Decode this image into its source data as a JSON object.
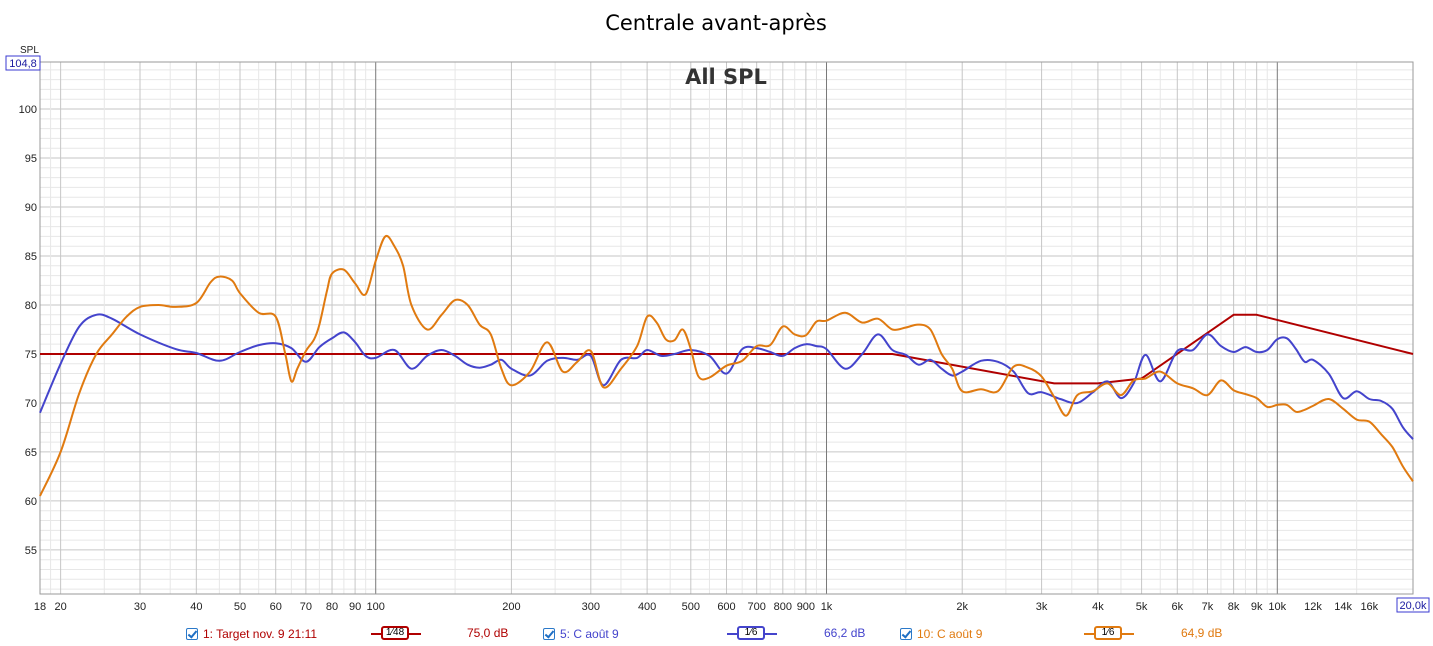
{
  "chart_data": {
    "type": "line",
    "title": "Centrale avant-après",
    "watermark": "All SPL",
    "ylabel": "SPL",
    "ylim": [
      50.5,
      104.8
    ],
    "ylim_top_label": "104,8",
    "xlim": [
      18,
      20000
    ],
    "xlim_right_label": "20,0k",
    "xscale": "log",
    "grid": true,
    "yticks": [
      {
        "v": 55,
        "label": "55"
      },
      {
        "v": 60,
        "label": "60"
      },
      {
        "v": 65,
        "label": "65"
      },
      {
        "v": 70,
        "label": "70"
      },
      {
        "v": 75,
        "label": "75"
      },
      {
        "v": 80,
        "label": "80"
      },
      {
        "v": 85,
        "label": "85"
      },
      {
        "v": 90,
        "label": "90"
      },
      {
        "v": 95,
        "label": "95"
      },
      {
        "v": 100,
        "label": "100"
      }
    ],
    "xticks": [
      {
        "v": 18,
        "label": "18"
      },
      {
        "v": 20,
        "label": "20"
      },
      {
        "v": 30,
        "label": "30"
      },
      {
        "v": 40,
        "label": "40"
      },
      {
        "v": 50,
        "label": "50"
      },
      {
        "v": 60,
        "label": "60"
      },
      {
        "v": 70,
        "label": "70"
      },
      {
        "v": 80,
        "label": "80"
      },
      {
        "v": 90,
        "label": "90"
      },
      {
        "v": 100,
        "label": "100"
      },
      {
        "v": 200,
        "label": "200"
      },
      {
        "v": 300,
        "label": "300"
      },
      {
        "v": 400,
        "label": "400"
      },
      {
        "v": 500,
        "label": "500"
      },
      {
        "v": 600,
        "label": "600"
      },
      {
        "v": 700,
        "label": "700"
      },
      {
        "v": 800,
        "label": "800"
      },
      {
        "v": 900,
        "label": "900"
      },
      {
        "v": 1000,
        "label": "1k"
      },
      {
        "v": 2000,
        "label": "2k"
      },
      {
        "v": 3000,
        "label": "3k"
      },
      {
        "v": 4000,
        "label": "4k"
      },
      {
        "v": 5000,
        "label": "5k"
      },
      {
        "v": 6000,
        "label": "6k"
      },
      {
        "v": 7000,
        "label": "7k"
      },
      {
        "v": 8000,
        "label": "8k"
      },
      {
        "v": 9000,
        "label": "9k"
      },
      {
        "v": 10000,
        "label": "10k"
      },
      {
        "v": 12000,
        "label": "12k"
      },
      {
        "v": 14000,
        "label": "14k"
      },
      {
        "v": 16000,
        "label": "16k"
      }
    ],
    "series": [
      {
        "name": "1: Target nov. 9 21:11",
        "smoothing": "1⁄48",
        "value_label": "75,0 dB",
        "color": "#b00000",
        "x": [
          18,
          1400,
          3200,
          4000,
          5000,
          8000,
          9000,
          20000
        ],
        "y": [
          75,
          75,
          72,
          72,
          72.5,
          79,
          79,
          75
        ]
      },
      {
        "name": "5: C août 9",
        "smoothing": "1⁄6",
        "value_label": "66,2 dB",
        "color": "#4444cc",
        "x": [
          18,
          20,
          22,
          24,
          26,
          30,
          36,
          40,
          45,
          50,
          55,
          60,
          65,
          70,
          75,
          80,
          85,
          90,
          95,
          100,
          110,
          120,
          130,
          140,
          150,
          160,
          170,
          180,
          190,
          200,
          220,
          240,
          260,
          280,
          300,
          320,
          350,
          380,
          400,
          430,
          460,
          500,
          550,
          600,
          650,
          700,
          750,
          800,
          850,
          900,
          950,
          1000,
          1100,
          1200,
          1300,
          1400,
          1500,
          1600,
          1700,
          1800,
          1900,
          2000,
          2200,
          2400,
          2600,
          2800,
          3000,
          3300,
          3600,
          3900,
          4200,
          4500,
          4800,
          5100,
          5500,
          6000,
          6500,
          7000,
          7500,
          8000,
          8500,
          9000,
          9500,
          10000,
          10500,
          11000,
          11500,
          12000,
          13000,
          14000,
          15000,
          16000,
          17000,
          18000,
          19000,
          20000
        ],
        "y": [
          69,
          74,
          77.8,
          79,
          78.6,
          77,
          75.5,
          75.1,
          74.3,
          75.2,
          75.9,
          76.1,
          75.6,
          74.2,
          75.7,
          76.6,
          77.2,
          76.2,
          74.8,
          74.6,
          75.4,
          73.5,
          74.8,
          75.4,
          74.8,
          73.9,
          73.6,
          73.9,
          74.4,
          73.5,
          72.8,
          74.3,
          74.6,
          74.4,
          74.8,
          71.8,
          74.4,
          74.6,
          75.4,
          74.8,
          75,
          75.4,
          74.8,
          73,
          75.5,
          75.6,
          75.2,
          74.8,
          75.6,
          76,
          75.8,
          75.5,
          73.5,
          75,
          77,
          75.4,
          74.9,
          73.9,
          74.4,
          73.5,
          72.8,
          73.2,
          74.3,
          74.2,
          73.2,
          71,
          71.1,
          70.4,
          70,
          71.1,
          72.2,
          70.5,
          72,
          74.9,
          72.2,
          75.3,
          75.4,
          77,
          75.8,
          75.2,
          75.7,
          75.2,
          75.4,
          76.5,
          76.6,
          75.5,
          74.2,
          74.4,
          73,
          70.5,
          71.2,
          70.4,
          70.2,
          69.4,
          67.5,
          66.3
        ]
      },
      {
        "name": "10: C août 9",
        "smoothing": "1⁄6",
        "value_label": "64,9 dB",
        "color": "#e07a10",
        "x": [
          18,
          20,
          22,
          24,
          26,
          28,
          30,
          33,
          36,
          40,
          43,
          45,
          48,
          50,
          55,
          60,
          63,
          65,
          67,
          70,
          73,
          75,
          78,
          80,
          85,
          90,
          95,
          100,
          105,
          110,
          115,
          120,
          130,
          140,
          150,
          160,
          170,
          180,
          190,
          200,
          220,
          240,
          260,
          280,
          300,
          320,
          350,
          380,
          400,
          420,
          440,
          460,
          480,
          500,
          520,
          550,
          600,
          650,
          700,
          750,
          800,
          850,
          900,
          950,
          1000,
          1100,
          1200,
          1300,
          1400,
          1500,
          1600,
          1700,
          1800,
          1900,
          2000,
          2200,
          2400,
          2600,
          2800,
          3000,
          3200,
          3400,
          3600,
          3900,
          4200,
          4500,
          4800,
          5100,
          5500,
          6000,
          6500,
          7000,
          7500,
          8000,
          8500,
          9000,
          9500,
          10000,
          10500,
          11000,
          11500,
          12000,
          13000,
          14000,
          15000,
          16000,
          17000,
          18000,
          19000,
          20000
        ],
        "y": [
          60.5,
          65,
          71,
          75,
          77,
          78.8,
          79.8,
          80,
          79.8,
          80.2,
          82.3,
          82.9,
          82.5,
          81.2,
          79.2,
          78.8,
          75,
          72.2,
          73.5,
          75.3,
          76.5,
          78,
          81.5,
          83.2,
          83.6,
          82.2,
          81.1,
          84.5,
          87,
          86,
          84,
          80,
          77.5,
          79,
          80.5,
          80,
          78,
          77,
          73.5,
          71.8,
          73.2,
          76.2,
          73.2,
          74.2,
          75.3,
          71.6,
          73.5,
          75.8,
          78.8,
          78.2,
          76.5,
          76.4,
          77.5,
          75.5,
          72.7,
          72.6,
          73.8,
          74.3,
          75.8,
          75.9,
          77.8,
          77,
          76.9,
          78.3,
          78.4,
          79.2,
          78.2,
          78.6,
          77.5,
          77.7,
          78,
          77.5,
          75,
          73.5,
          71.2,
          71.4,
          71.2,
          73.7,
          73.6,
          72.7,
          70.6,
          68.7,
          70.8,
          71.2,
          72,
          70.8,
          72.3,
          72.5,
          73.2,
          72,
          71.5,
          70.8,
          72.3,
          71.3,
          70.9,
          70.5,
          69.6,
          69.8,
          69.8,
          69.1,
          69.3,
          69.7,
          70.4,
          69.4,
          68.3,
          68.1,
          66.8,
          65.5,
          63.5,
          62
        ]
      }
    ]
  }
}
